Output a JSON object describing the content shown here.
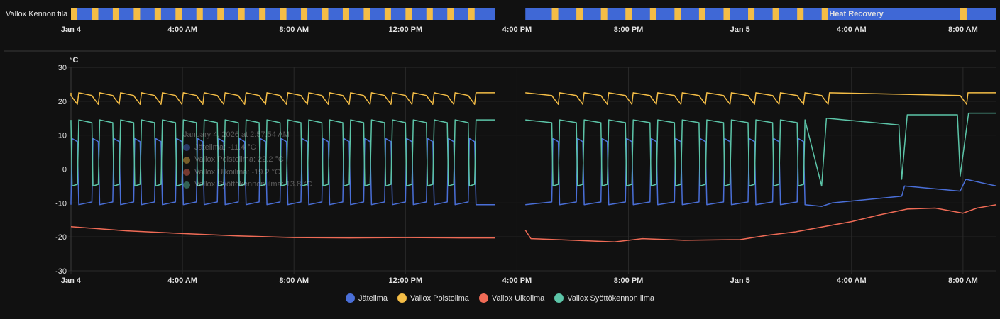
{
  "timeline": {
    "entity_label": "Vallox Kennon tila",
    "state_label": "Heat Recovery",
    "colors": {
      "normal": "#3f68d6",
      "defrost": "#f4bd46"
    },
    "defrost_starts_hours": [
      0,
      0.75,
      1.5,
      2.25,
      3.0,
      3.75,
      4.5,
      5.25,
      6.0,
      6.75,
      7.5,
      8.25,
      9.0,
      9.75,
      10.5,
      11.25,
      12.0,
      12.75,
      13.5,
      14.25,
      17.25,
      18.13,
      19.01,
      19.89,
      20.77,
      21.65,
      22.53,
      23.41,
      24.29,
      25.17,
      26.05,
      26.93,
      31.9
    ],
    "defrost_duration_hours": 0.23,
    "data_ranges_hours": [
      [
        0,
        15.2
      ],
      [
        16.3,
        33.2
      ]
    ],
    "state_label_at_hours": 27.2
  },
  "chart_data": {
    "type": "line",
    "unit": "°C",
    "ylim": [
      -30,
      30
    ],
    "yticks": [
      30,
      20,
      10,
      0,
      -10,
      -20,
      -30
    ],
    "xlim_hours": [
      0,
      33.2
    ],
    "xticks": [
      {
        "h": 0,
        "label": "Jan 4",
        "bold": true
      },
      {
        "h": 4,
        "label": "4:00 AM"
      },
      {
        "h": 8,
        "label": "8:00 AM"
      },
      {
        "h": 12,
        "label": "12:00 PM"
      },
      {
        "h": 16,
        "label": "4:00 PM"
      },
      {
        "h": 20,
        "label": "8:00 PM"
      },
      {
        "h": 24,
        "label": "Jan 5",
        "bold": true
      },
      {
        "h": 28,
        "label": "4:00 AM"
      },
      {
        "h": 32,
        "label": "8:00 AM"
      }
    ],
    "grid": true,
    "legend_position": "bottom",
    "series": [
      {
        "name": "Jäteilma",
        "color": "#4a6fd8",
        "normal_level": -10.5,
        "defrost_level": 9,
        "heat_recovery_points": [
          [
            26.93,
            -11
          ],
          [
            27.3,
            -10
          ],
          [
            29.8,
            -8
          ],
          [
            29.9,
            -5
          ],
          [
            31.9,
            -6.5
          ],
          [
            32.1,
            -3
          ],
          [
            33.2,
            -5
          ]
        ]
      },
      {
        "name": "Vallox Poistoilma",
        "color": "#f4bd46",
        "normal_level": 22.5,
        "defrost_level": 21.2
      },
      {
        "name": "Vallox Ulkoilma",
        "color": "#f06b56",
        "points": [
          [
            0,
            -17
          ],
          [
            2,
            -18.2
          ],
          [
            4,
            -19
          ],
          [
            6,
            -19.7
          ],
          [
            8,
            -20.2
          ],
          [
            10,
            -20.3
          ],
          [
            12,
            -20.2
          ],
          [
            14,
            -20.3
          ],
          [
            15.2,
            -20.3
          ],
          [
            16.3,
            -18
          ],
          [
            16.5,
            -20.5
          ],
          [
            18,
            -21
          ],
          [
            19.5,
            -21.5
          ],
          [
            20.5,
            -20.5
          ],
          [
            22,
            -21
          ],
          [
            24,
            -20.8
          ],
          [
            25,
            -19.5
          ],
          [
            26,
            -18.5
          ],
          [
            27,
            -17
          ],
          [
            28,
            -15.5
          ],
          [
            29,
            -13.5
          ],
          [
            30,
            -11.8
          ],
          [
            31,
            -11.5
          ],
          [
            32,
            -13
          ],
          [
            32.5,
            -11.5
          ],
          [
            33.2,
            -10.5
          ]
        ]
      },
      {
        "name": "Vallox Syöttökennon ilma",
        "color": "#5cc5a8",
        "normal_level": 14.5,
        "defrost_level": -5,
        "heat_recovery_points": [
          [
            26.93,
            -5
          ],
          [
            27.1,
            15
          ],
          [
            29.7,
            13
          ],
          [
            29.8,
            -3
          ],
          [
            30.0,
            16
          ],
          [
            31.8,
            16
          ],
          [
            31.9,
            -2
          ],
          [
            32.2,
            16.5
          ],
          [
            33.2,
            16.5
          ]
        ]
      }
    ],
    "tooltip": {
      "title": "January 4, 2026 at 2:57:54 AM",
      "rows": [
        "Jäteilma: -11.4 °C",
        "Vallox Poistoilma: 22.2 °C",
        "Vallox Ulkoilma: -19.2 °C",
        "Vallox Syöttökennon ilma: 13.8 °C"
      ]
    }
  }
}
